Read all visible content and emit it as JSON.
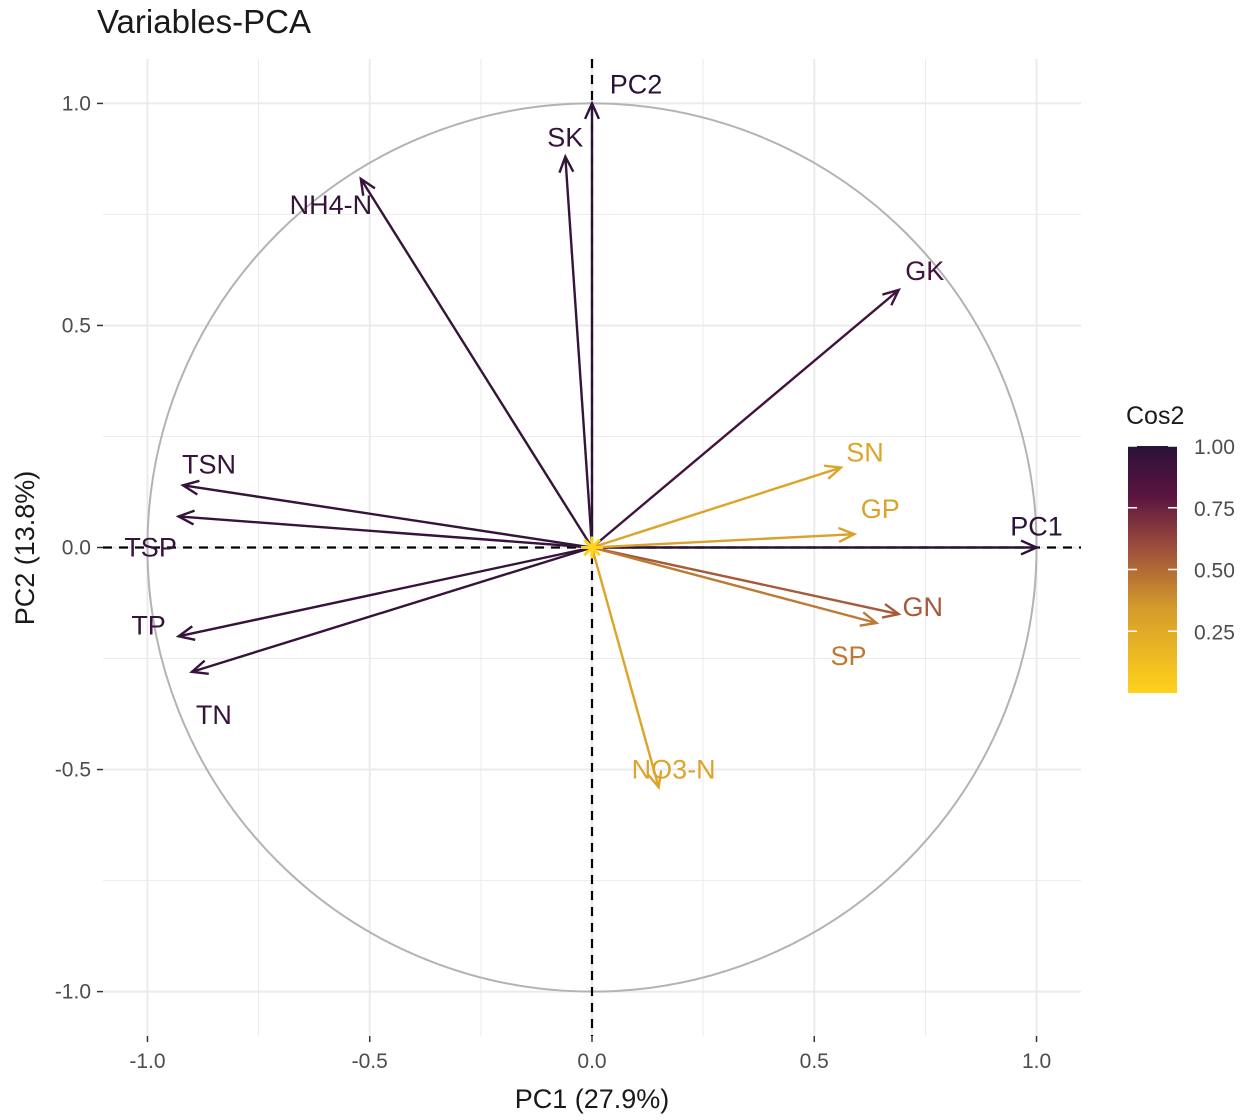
{
  "chart_data": {
    "type": "pca-variables",
    "title": "Variables-PCA",
    "xlabel": "PC1 (27.9%)",
    "ylabel": "PC2 (13.8%)",
    "xlim": [
      -1.1,
      1.1
    ],
    "ylim": [
      -1.1,
      1.1
    ],
    "x_ticks": [
      -1.0,
      -0.5,
      0.0,
      0.5,
      1.0
    ],
    "x_tick_labels": [
      "-1.0",
      "-0.5",
      "0.0",
      "0.5",
      "1.0"
    ],
    "y_ticks": [
      -1.0,
      -0.5,
      0.0,
      0.5,
      1.0
    ],
    "y_tick_labels": [
      "-1.0",
      "-0.5",
      "0.0",
      "0.5",
      "1.0"
    ],
    "grid": true,
    "unit_circle": true,
    "axis_lines": [
      {
        "name": "PC1",
        "label": "PC1",
        "x": 1.0,
        "y": 0.0
      },
      {
        "name": "PC2",
        "label": "PC2",
        "x": 0.0,
        "y": 1.0
      }
    ],
    "variables": [
      {
        "name": "SK",
        "x": -0.06,
        "y": 0.88,
        "cos2": 0.95
      },
      {
        "name": "NH4-N",
        "x": -0.52,
        "y": 0.83,
        "cos2": 0.95
      },
      {
        "name": "GK",
        "x": 0.69,
        "y": 0.58,
        "cos2": 0.9
      },
      {
        "name": "SN",
        "x": 0.56,
        "y": 0.18,
        "cos2": 0.28
      },
      {
        "name": "GP",
        "x": 0.59,
        "y": 0.03,
        "cos2": 0.3
      },
      {
        "name": "GN",
        "x": 0.69,
        "y": -0.15,
        "cos2": 0.55
      },
      {
        "name": "SP",
        "x": 0.64,
        "y": -0.17,
        "cos2": 0.45
      },
      {
        "name": "NO3-N",
        "x": 0.15,
        "y": -0.54,
        "cos2": 0.28
      },
      {
        "name": "TSN",
        "x": -0.92,
        "y": 0.14,
        "cos2": 0.95
      },
      {
        "name": "TSP",
        "x": -0.93,
        "y": 0.07,
        "cos2": 0.95
      },
      {
        "name": "TP",
        "x": -0.93,
        "y": -0.2,
        "cos2": 0.95
      },
      {
        "name": "TN",
        "x": -0.9,
        "y": -0.28,
        "cos2": 0.95
      }
    ],
    "legend": {
      "title": "Cos2",
      "position": "right",
      "ticks": [
        1.0,
        0.75,
        0.5,
        0.25
      ],
      "tick_labels": [
        "1.00",
        "0.75",
        "0.50",
        "0.25"
      ],
      "range": [
        0.0,
        1.0
      ]
    },
    "colors": {
      "high": "#2a1238",
      "mid_high": "#5a1440",
      "mid": "#9a6030",
      "low": "#ffd21c",
      "grid": "#ebebeb",
      "circle": "#b3b3b3",
      "axis_line": "#000000"
    }
  }
}
